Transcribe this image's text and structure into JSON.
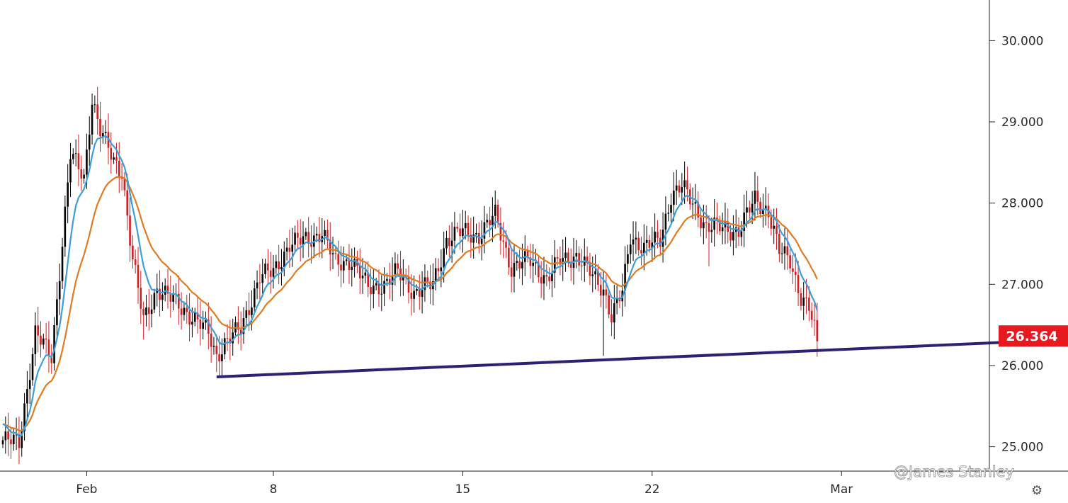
{
  "chart_data": {
    "type": "candlestick",
    "ylim": [
      24.7,
      30.3
    ],
    "y_ticks": [
      "25.000",
      "26.000",
      "27.000",
      "28.000",
      "29.000",
      "30.000"
    ],
    "x_ticks": [
      {
        "label": "Feb",
        "index": 31
      },
      {
        "label": "8",
        "index": 100
      },
      {
        "label": "15",
        "index": 170
      },
      {
        "label": "22",
        "index": 240
      },
      {
        "label": "Mar",
        "index": 310
      }
    ],
    "last_price": "26.364",
    "last_price_value": 26.364,
    "colors": {
      "up": "#000000",
      "down": "#d11f1f",
      "ema_fast": "#3d9ed9",
      "ema_slow": "#e07b22",
      "trendline": "#2e2175",
      "price_tag": "#e8181f",
      "axis": "#222222"
    },
    "moving_averages": [
      {
        "period": 8,
        "color": "#3d9ed9"
      },
      {
        "period": 21,
        "color": "#e07b22"
      }
    ],
    "trendline": {
      "from": {
        "index": 79,
        "price": 25.86
      },
      "to": {
        "index": 380,
        "price": 26.3
      }
    },
    "anchors": [
      [
        0,
        25.08
      ],
      [
        6,
        25.05
      ],
      [
        12,
        26.4
      ],
      [
        18,
        26.1
      ],
      [
        25,
        28.6
      ],
      [
        30,
        28.3
      ],
      [
        33,
        29.3
      ],
      [
        36,
        28.9
      ],
      [
        41,
        28.5
      ],
      [
        44,
        28.4
      ],
      [
        48,
        27.3
      ],
      [
        52,
        26.55
      ],
      [
        57,
        26.95
      ],
      [
        63,
        26.8
      ],
      [
        70,
        26.6
      ],
      [
        76,
        26.4
      ],
      [
        79,
        26.12
      ],
      [
        82,
        26.28
      ],
      [
        88,
        26.45
      ],
      [
        95,
        27.1
      ],
      [
        100,
        27.15
      ],
      [
        106,
        27.5
      ],
      [
        113,
        27.55
      ],
      [
        118,
        27.65
      ],
      [
        123,
        27.25
      ],
      [
        129,
        27.3
      ],
      [
        135,
        26.95
      ],
      [
        141,
        27.0
      ],
      [
        146,
        27.15
      ],
      [
        152,
        26.9
      ],
      [
        159,
        27.0
      ],
      [
        164,
        27.55
      ],
      [
        170,
        27.65
      ],
      [
        176,
        27.6
      ],
      [
        182,
        27.85
      ],
      [
        188,
        27.2
      ],
      [
        195,
        27.3
      ],
      [
        201,
        27.05
      ],
      [
        206,
        27.3
      ],
      [
        212,
        27.35
      ],
      [
        218,
        27.1
      ],
      [
        222,
        26.95
      ],
      [
        225,
        26.6
      ],
      [
        229,
        26.9
      ],
      [
        232,
        27.6
      ],
      [
        237,
        27.45
      ],
      [
        243,
        27.55
      ],
      [
        247,
        28.1
      ],
      [
        251,
        28.2
      ],
      [
        256,
        27.95
      ],
      [
        260,
        27.7
      ],
      [
        266,
        27.7
      ],
      [
        272,
        27.65
      ],
      [
        278,
        28.05
      ],
      [
        283,
        27.9
      ],
      [
        287,
        27.4
      ],
      [
        291,
        27.3
      ],
      [
        295,
        26.85
      ],
      [
        298,
        26.7
      ],
      [
        301,
        26.3
      ]
    ],
    "dips": [
      [
        52,
        26.32
      ],
      [
        79,
        25.92
      ],
      [
        222,
        26.12
      ],
      [
        261,
        27.22
      ],
      [
        301,
        26.28
      ],
      [
        3,
        24.85
      ]
    ]
  },
  "watermark": "@James Stanley",
  "settings_icon": "gear-icon"
}
